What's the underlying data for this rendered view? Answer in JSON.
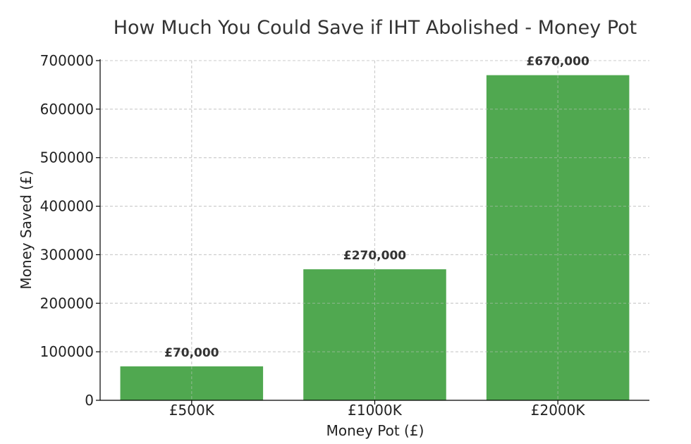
{
  "chart_data": {
    "type": "bar",
    "title": "How Much You Could Save if IHT Abolished - Money Pot",
    "xlabel": "Money Pot (£)",
    "ylabel": "Money Saved (£)",
    "categories": [
      "£500K",
      "£1000K",
      "£2000K"
    ],
    "values": [
      70000,
      270000,
      670000
    ],
    "data_labels": [
      "£70,000",
      "£270,000",
      "£670,000"
    ],
    "ylim": [
      0,
      700000
    ],
    "yticks": [
      0,
      100000,
      200000,
      300000,
      400000,
      500000,
      600000,
      700000
    ],
    "ytick_labels": [
      "0",
      "100000",
      "200000",
      "300000",
      "400000",
      "500000",
      "600000",
      "700000"
    ],
    "grid": true,
    "legend": false,
    "colors": {
      "bar": "#4ca64c",
      "title": "#333333",
      "grid": "#c8c8c8"
    }
  }
}
